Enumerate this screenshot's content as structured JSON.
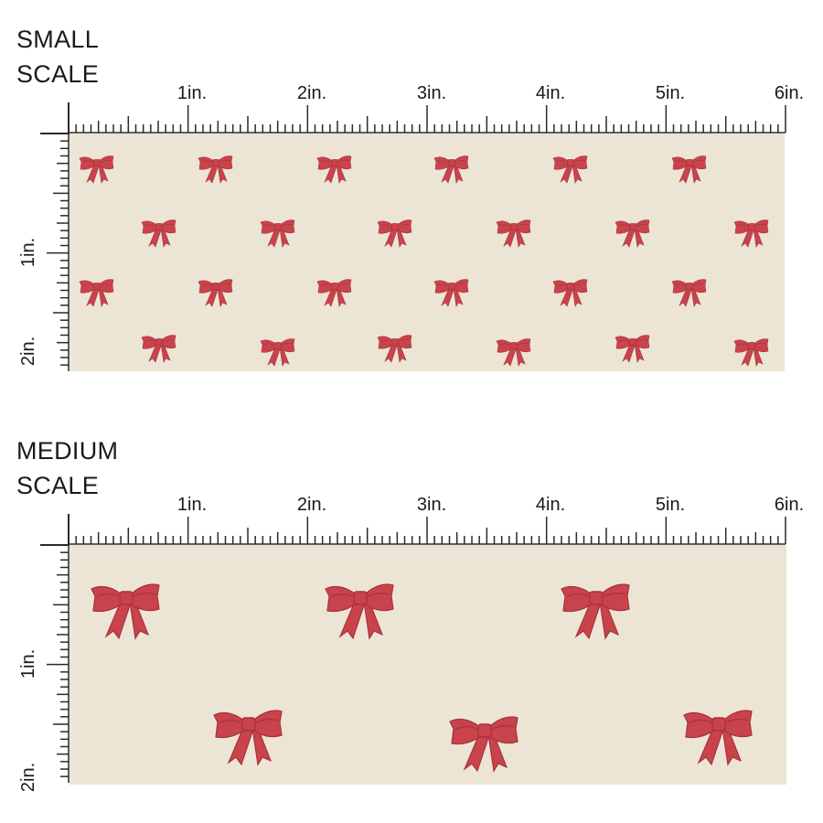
{
  "colors": {
    "background": "#ece5d5",
    "bow_main": "#c9434c",
    "bow_shadow": "#a8323b",
    "ruler": "#2a2a2a"
  },
  "sections": [
    {
      "id": "small",
      "title_line1": "SMALL",
      "title_line2": "SCALE",
      "inch_labels": [
        "1in.",
        "2in.",
        "3in.",
        "4in.",
        "5in.",
        "6in."
      ],
      "vertical_labels": [
        "1in.",
        "2in."
      ],
      "motif": "bow-icon"
    },
    {
      "id": "medium",
      "title_line1": "MEDIUM",
      "title_line2": "SCALE",
      "inch_labels": [
        "1in.",
        "2in.",
        "3in.",
        "4in.",
        "5in.",
        "6in."
      ],
      "vertical_labels": [
        "1in.",
        "2in."
      ],
      "motif": "bow-icon"
    }
  ]
}
